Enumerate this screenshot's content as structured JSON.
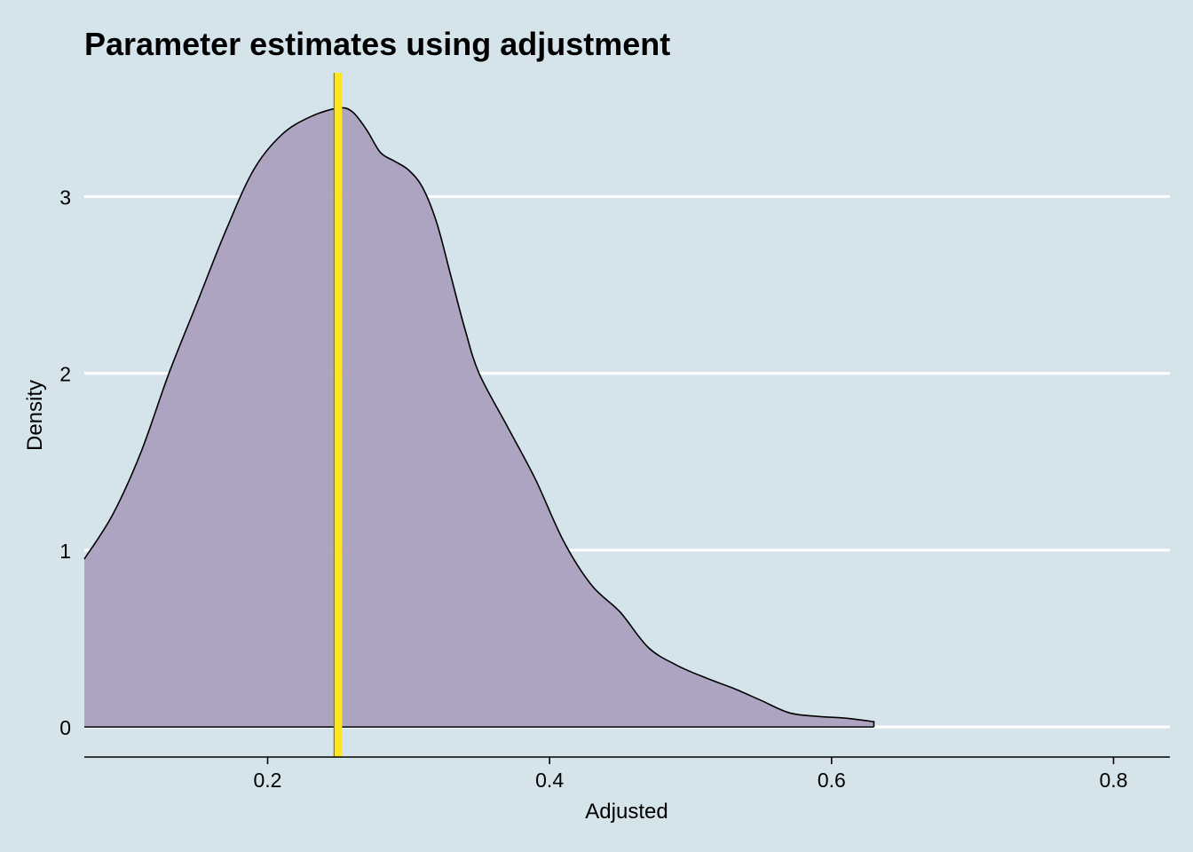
{
  "chart_data": {
    "type": "area",
    "title": "Parameter estimates using adjustment",
    "xlabel": "Adjusted",
    "ylabel": "Density",
    "xlim": [
      0.07,
      0.84
    ],
    "ylim": [
      -0.17,
      3.7
    ],
    "x_ticks": [
      0.2,
      0.4,
      0.6,
      0.8
    ],
    "y_ticks": [
      0,
      1,
      2,
      3
    ],
    "grid": "horizontal-major",
    "colors": {
      "background": "#d5e4eb",
      "grid": "#ffffff",
      "fill": "#a99ebd",
      "outline": "#000000",
      "reference_line": "#fde725"
    },
    "reference_line_x": 0.25,
    "series": [
      {
        "x": [
          0.07,
          0.09,
          0.11,
          0.13,
          0.15,
          0.17,
          0.19,
          0.21,
          0.23,
          0.25,
          0.26,
          0.27,
          0.28,
          0.29,
          0.3,
          0.31,
          0.32,
          0.33,
          0.34,
          0.35,
          0.37,
          0.39,
          0.41,
          0.43,
          0.45,
          0.47,
          0.49,
          0.51,
          0.53,
          0.55,
          0.57,
          0.59,
          0.61,
          0.63
        ],
        "y": [
          0.95,
          1.2,
          1.55,
          2.0,
          2.4,
          2.8,
          3.15,
          3.35,
          3.45,
          3.5,
          3.48,
          3.38,
          3.25,
          3.2,
          3.15,
          3.05,
          2.85,
          2.55,
          2.25,
          2.0,
          1.7,
          1.4,
          1.05,
          0.8,
          0.65,
          0.45,
          0.35,
          0.28,
          0.22,
          0.15,
          0.08,
          0.06,
          0.05,
          0.03
        ]
      }
    ]
  }
}
